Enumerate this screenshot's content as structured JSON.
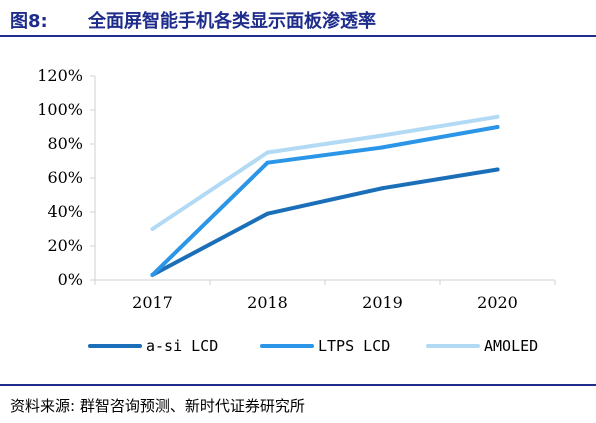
{
  "figure": {
    "label": "图8:",
    "title": "全面屏智能手机各类显示面板渗透率"
  },
  "source": "资料来源: 群智咨询预测、新时代证券研究所",
  "colors": {
    "header": "#1e2c8c",
    "axis": "#d0d0d0"
  },
  "chart_data": {
    "type": "line",
    "title": "全面屏智能手机各类显示面板渗透率",
    "xlabel": "",
    "ylabel": "",
    "categories": [
      "2017",
      "2018",
      "2019",
      "2020"
    ],
    "ylim": [
      0,
      120
    ],
    "yticks": [
      0,
      20,
      40,
      60,
      80,
      100,
      120
    ],
    "ytick_labels": [
      "0%",
      "20%",
      "40%",
      "60%",
      "80%",
      "100%",
      "120%"
    ],
    "grid": false,
    "legend_position": "bottom",
    "series": [
      {
        "name": "a-si LCD",
        "values": [
          3,
          39,
          54,
          65
        ],
        "color": "#1a6fb8"
      },
      {
        "name": "LTPS LCD",
        "values": [
          3,
          69,
          78,
          90
        ],
        "color": "#2b95e8"
      },
      {
        "name": "AMOLED",
        "values": [
          30,
          75,
          85,
          96
        ],
        "color": "#b3daf5"
      }
    ]
  }
}
